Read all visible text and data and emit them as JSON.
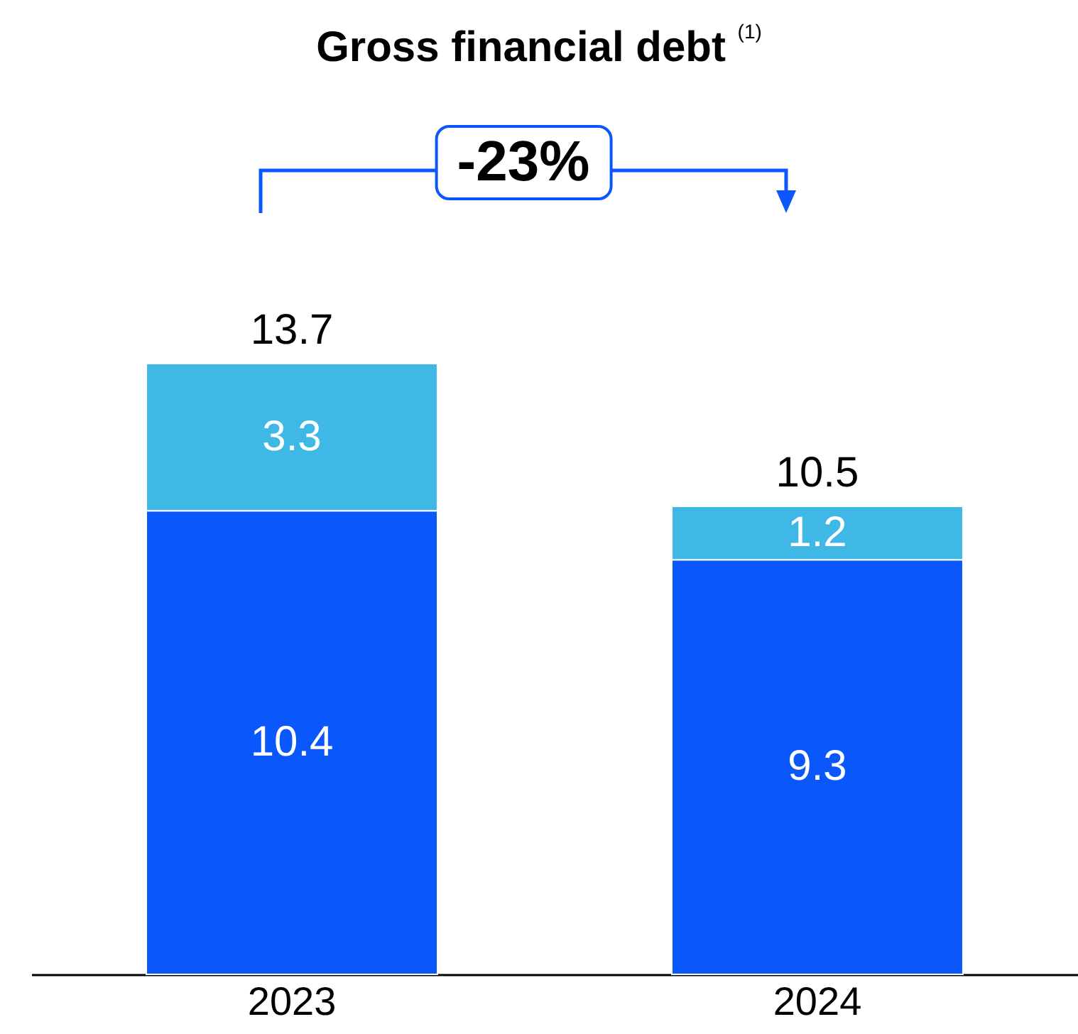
{
  "chart_data": {
    "type": "bar",
    "title": "Gross financial debt $^{(1)}$",
    "stacked": true,
    "data_labels": true,
    "categories": [
      "2023",
      "2024"
    ],
    "series": [
      {
        "color": "#0a57fb",
        "values": [
          10.4,
          9.3
        ]
      },
      {
        "color": "#40b8e6",
        "values": [
          3.3,
          1.2
        ]
      }
    ],
    "totals": [
      "13.7",
      "10.5"
    ],
    "annotations": [
      "-23%"
    ],
    "grid": false,
    "legend": false
  }
}
